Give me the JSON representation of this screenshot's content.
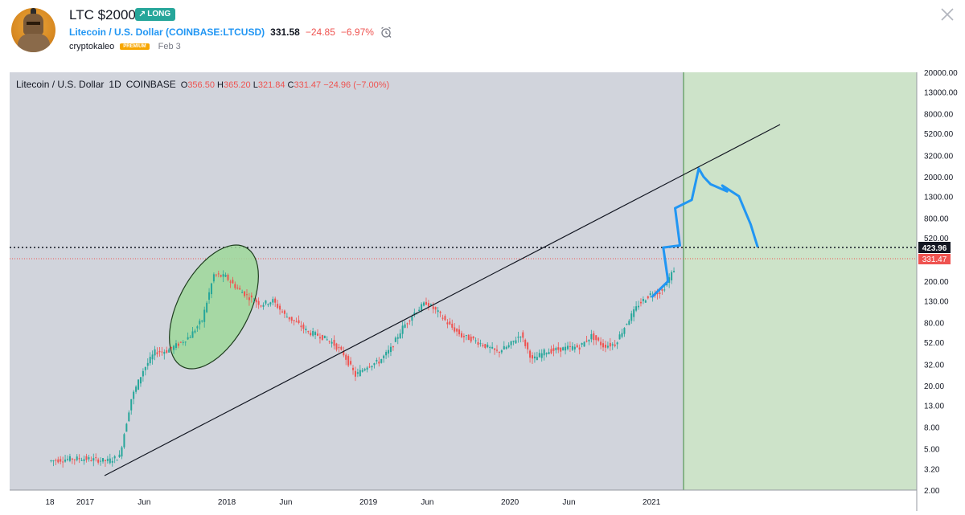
{
  "header": {
    "title": "LTC $2000",
    "badge": "LONG",
    "symbol_name": "Litecoin / U.S. Dollar",
    "symbol_ticker": "(COINBASE:LTCUSD)",
    "price": "331.58",
    "change_abs": "−24.85",
    "change_pct": "−6.97%",
    "author": "cryptokaleo",
    "author_badge": "PREMIUM",
    "date": "Feb 3"
  },
  "legend": {
    "symbol": "Litecoin / U.S. Dollar",
    "interval": "1D",
    "exchange": "COINBASE",
    "o_label": "O",
    "o_value": "356.50",
    "h_label": "H",
    "h_value": "365.20",
    "l_label": "L",
    "l_value": "321.84",
    "c_label": "C",
    "c_value": "331.47",
    "chg": "−24.96 (−7.00%)"
  },
  "colors": {
    "up": "#26a69a",
    "down": "#ef5350",
    "projection": "#2196f3",
    "chart_bg": "#d1d4dc",
    "highlight_zone": "#cde3c9",
    "ellipse_fill": "#9fd89a",
    "badge_green": "#26a69a",
    "premium": "#f7a600"
  },
  "chart_data": {
    "type": "line",
    "yscale": "log",
    "ylim": [
      2.0,
      20000.0
    ],
    "y_ticks": [
      "20000.00",
      "13000.00",
      "8000.00",
      "5200.00",
      "3200.00",
      "2000.00",
      "1300.00",
      "800.00",
      "520.00",
      "200.00",
      "130.00",
      "80.00",
      "52.00",
      "32.00",
      "20.00",
      "13.00",
      "8.00",
      "5.00",
      "3.20",
      "2.00"
    ],
    "x_ticks": [
      "18",
      "2017",
      "Jun",
      "2018",
      "Jun",
      "2019",
      "Jun",
      "2020",
      "Jun",
      "2021"
    ],
    "price_labels": {
      "level_line": "423.96",
      "last_close": "331.47"
    },
    "series": [
      {
        "x": [
          "2016-10",
          "2016-11",
          "2016-12",
          "2017-01",
          "2017-02",
          "2017-03",
          "2017-04",
          "2017-05",
          "2017-06",
          "2017-07",
          "2017-08",
          "2017-09",
          "2017-10",
          "2017-11",
          "2017-12",
          "2018-01",
          "2018-02",
          "2018-03",
          "2018-04",
          "2018-05",
          "2018-06",
          "2018-07",
          "2018-08",
          "2018-09",
          "2018-10",
          "2018-11",
          "2018-12",
          "2019-01",
          "2019-02",
          "2019-03",
          "2019-04",
          "2019-05",
          "2019-06",
          "2019-07",
          "2019-08",
          "2019-09",
          "2019-10",
          "2019-11",
          "2019-12",
          "2020-01",
          "2020-02",
          "2020-03",
          "2020-04",
          "2020-05",
          "2020-06",
          "2020-07",
          "2020-08",
          "2020-09",
          "2020-10",
          "2020-11",
          "2020-12",
          "2021-01",
          "2021-02",
          "2021-03"
        ],
        "values": [
          3.8,
          3.9,
          4.0,
          4.0,
          3.9,
          3.8,
          4.2,
          15,
          28,
          42,
          43,
          50,
          60,
          85,
          230,
          220,
          170,
          140,
          120,
          130,
          95,
          80,
          65,
          60,
          52,
          40,
          25,
          31,
          34,
          45,
          72,
          100,
          125,
          100,
          75,
          60,
          55,
          48,
          42,
          48,
          62,
          35,
          42,
          44,
          46,
          47,
          60,
          48,
          50,
          80,
          120,
          150,
          160,
          260
        ]
      },
      {
        "x": [
          "2021-01",
          "2021-02",
          "2021-02",
          "2021-03",
          "2021-03",
          "2021-04",
          "2021-05",
          "2021-05",
          "2021-06",
          "2021-07",
          "2021-07",
          "2021-08",
          "2021-09",
          "2021-09",
          "2021-10"
        ],
        "values": [
          140,
          200,
          420,
          440,
          1000,
          1200,
          2400,
          2000,
          1700,
          1450,
          1650,
          1300,
          900,
          700,
          423.96
        ]
      }
    ]
  }
}
